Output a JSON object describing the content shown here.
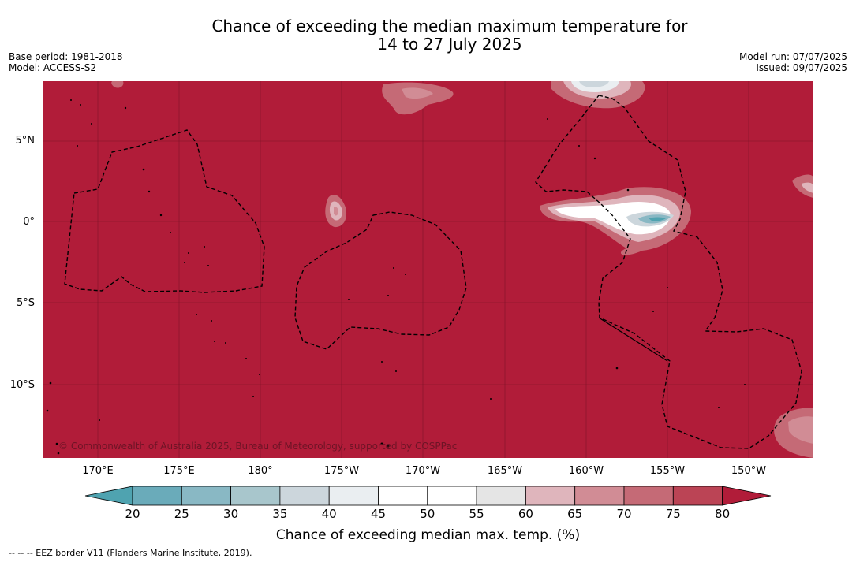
{
  "title_line1": "Chance of exceeding the median maximum temperature for",
  "title_line2": "14 to 27 July 2025",
  "base_period": "Base period: 1981-2018",
  "model": "Model: ACCESS-S2",
  "model_run": "Model run: 07/07/2025",
  "issued": "Issued: 09/07/2025",
  "lat_labels": [
    "5°N",
    "0°",
    "5°S",
    "10°S"
  ],
  "lon_labels": [
    "170°E",
    "175°E",
    "180°",
    "175°W",
    "170°W",
    "165°W",
    "160°W",
    "155°W",
    "150°W"
  ],
  "copyright": "© Commonwealth of Australia 2025, Bureau of Meteorology, supported by COSPPac",
  "colorbar": {
    "ticks": [
      "20",
      "25",
      "30",
      "35",
      "40",
      "45",
      "50",
      "55",
      "60",
      "65",
      "70",
      "75",
      "80"
    ],
    "colors": [
      "#4fa3b0",
      "#6aabba",
      "#89b8c4",
      "#a8c6cc",
      "#ccd6dc",
      "#eaeef1",
      "#ffffff",
      "#ffffff",
      "#e5e5e5",
      "#dfb5bc",
      "#d18c95",
      "#c56a76",
      "#bb4455",
      "#b11c39"
    ],
    "label": "Chance of exceeding median max. temp. (%)"
  },
  "footer": "--  --  -- EEZ border V11 (Flanders Marine Institute, 2019)."
}
